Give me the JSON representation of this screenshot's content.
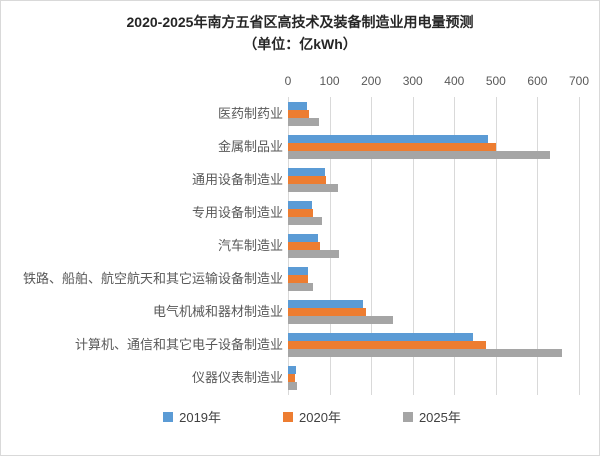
{
  "window": {
    "background": "#ffffff",
    "border_color": "#d9d9d9"
  },
  "chart_data": {
    "type": "bar",
    "orientation": "horizontal",
    "title": "2020-2025年南方五省区高技术及装备制造业用电量预测",
    "subtitle": "（单位：亿kWh）",
    "unit": "亿kWh",
    "categories": [
      "医药制药业",
      "金属制品业",
      "通用设备制造业",
      "专用设备制造业",
      "汽车制造业",
      "铁路、船舶、航空航天和其它运输设备制造业",
      "电气机械和器材制造业",
      "计算机、通信和其它电子设备制造业",
      "仪器仪表制造业"
    ],
    "series": [
      {
        "name": "2019年",
        "color": "#5B9BD5",
        "values": [
          45,
          480,
          90,
          57,
          71,
          49,
          181,
          445,
          20
        ]
      },
      {
        "name": "2020年",
        "color": "#ED7D31",
        "values": [
          51,
          500,
          92,
          61,
          77,
          47,
          188,
          476,
          18
        ]
      },
      {
        "name": "2025年",
        "color": "#A5A5A5",
        "values": [
          75,
          630,
          121,
          82,
          123,
          59,
          253,
          659,
          22
        ]
      }
    ],
    "x_ticks": [
      0,
      100,
      200,
      300,
      400,
      500,
      600,
      700
    ],
    "xlim": [
      0,
      700
    ],
    "axis_position": "top",
    "legend_position": "bottom",
    "grid": true,
    "gridline_color": "#d9d9d9",
    "axis_text_color": "#595959",
    "title_color": "#262626"
  }
}
